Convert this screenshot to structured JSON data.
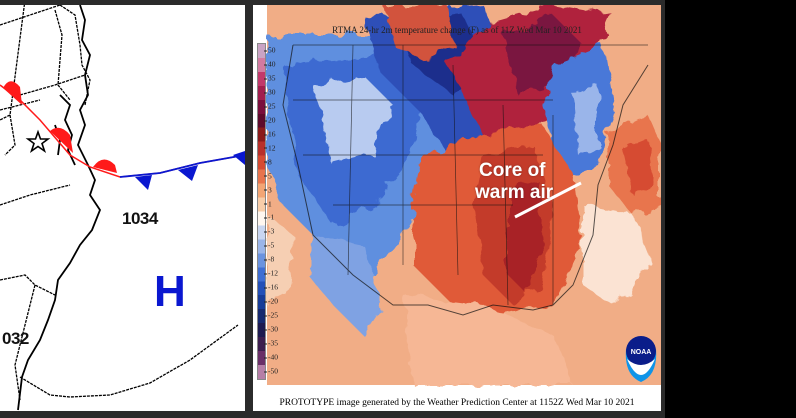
{
  "left_panel": {
    "pressure_labels": [
      "1034",
      "032"
    ],
    "high_pressure_symbol": "H",
    "colors": {
      "warm_front": "#ff1a1a",
      "cold_front": "#0a17d0",
      "high": "#0a17d0"
    }
  },
  "right_panel": {
    "title": "RTMA 24-hr 2m temperature change (F) as of 11Z Wed Mar 10 2021",
    "annotation_line1": "Core of",
    "annotation_line2": "warm air",
    "footer": "PROTOTYPE image generated by the Weather Prediction Center at 1152Z Wed Mar 10 2021",
    "logo_text": "NOAA",
    "colorbar_ticks": [
      "50",
      "40",
      "35",
      "30",
      "25",
      "20",
      "16",
      "12",
      "8",
      "5",
      "3",
      "1",
      "-1",
      "-3",
      "-5",
      "-8",
      "-12",
      "-16",
      "-20",
      "-25",
      "-30",
      "-35",
      "-40",
      "-50"
    ],
    "colorbar_colors": [
      "#c9a3c4",
      "#d27aa0",
      "#c2386b",
      "#a21e4e",
      "#7a0e3c",
      "#5e0a2c",
      "#8b1b1b",
      "#b8302a",
      "#d64b32",
      "#e8744d",
      "#f3a574",
      "#f8cda9",
      "#fff7f0",
      "#c9d6f1",
      "#9bb5e8",
      "#6b93df",
      "#3f6ed3",
      "#2350b8",
      "#173c98",
      "#16296f",
      "#1d1a50",
      "#3c1d4e",
      "#6a2f68",
      "#b67ea7"
    ]
  }
}
